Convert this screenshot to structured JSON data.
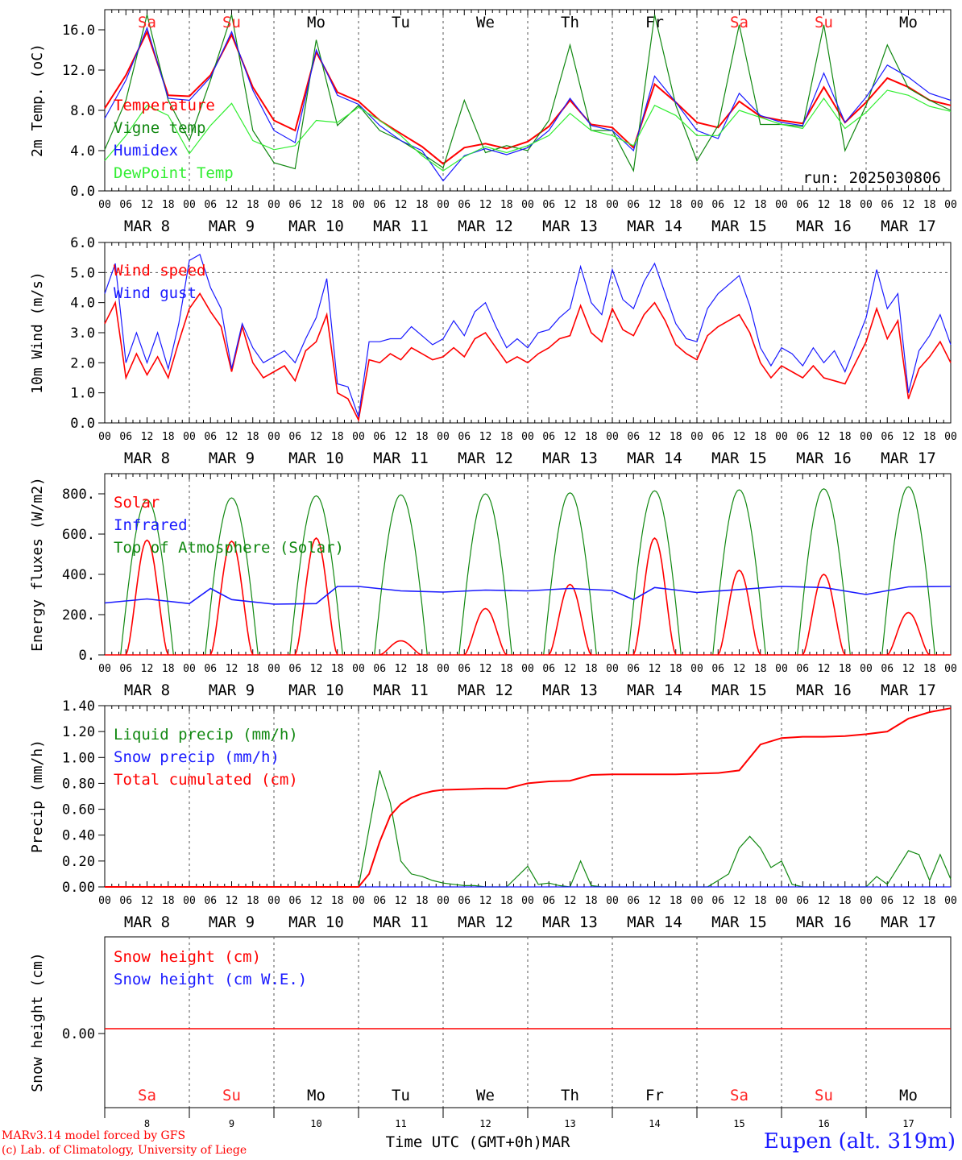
{
  "footer": {
    "model": "MARv3.14 model forced by GFS",
    "copyright": "(c) Lab. of Climatology, University of Liege",
    "time_axis": "Time UTC (GMT+0h)MAR",
    "station": "Eupen (alt. 319m)"
  },
  "days": [
    "Sa",
    "Su",
    "Mo",
    "Tu",
    "We",
    "Th",
    "Fr",
    "Sa",
    "Su",
    "Mo"
  ],
  "weekend_days": [
    "Sa",
    "Su"
  ],
  "date_labels": [
    "MAR  8",
    "MAR  9",
    "MAR 10",
    "MAR 11",
    "MAR 12",
    "MAR 13",
    "MAR 14",
    "MAR 15",
    "MAR 16",
    "MAR 17"
  ],
  "bottom_dates": [
    "8",
    "9",
    "10",
    "11",
    "12",
    "13",
    "14",
    "15",
    "16",
    "17"
  ],
  "hour_ticks": [
    "00",
    "06",
    "12",
    "18"
  ],
  "colors": {
    "red": "#ff0000",
    "green": "#118811",
    "blue": "#1a1aff",
    "light_green": "#33ee33",
    "weekend": "#ff2222",
    "weekday": "#000000"
  },
  "chart_data": [
    {
      "type": "line",
      "ylabel": "2m Temp. (oC)",
      "ylim": [
        0,
        18
      ],
      "yticks": [
        "0.0",
        "4.0",
        "8.0",
        "12.0",
        "16.0"
      ],
      "annotation": "run: 2025030806",
      "legend_position": "top-left",
      "x_unit": "hours since Mar 8 00 UTC",
      "series": [
        {
          "name": "Temperature",
          "color": "red",
          "x": [
            0,
            6,
            12,
            18,
            24,
            30,
            36,
            42,
            48,
            54,
            60,
            66,
            72,
            78,
            84,
            90,
            96,
            102,
            108,
            114,
            120,
            126,
            132,
            138,
            144,
            150,
            156,
            162,
            168,
            174,
            180,
            186,
            192,
            198,
            204,
            210,
            216,
            222,
            228,
            234,
            240
          ],
          "y": [
            8.2,
            11.5,
            15.8,
            9.5,
            9.4,
            11.5,
            15.5,
            10.3,
            7.0,
            6.0,
            13.8,
            9.8,
            8.9,
            7.0,
            5.7,
            4.4,
            2.7,
            4.3,
            4.7,
            4.2,
            4.9,
            6.4,
            9.0,
            6.6,
            6.3,
            4.3,
            10.6,
            8.8,
            6.8,
            6.3,
            8.9,
            7.4,
            7.0,
            6.7,
            10.3,
            6.8,
            8.8,
            11.2,
            10.3,
            9.0,
            8.5
          ]
        },
        {
          "name": "Vigne temp",
          "color": "green",
          "x": [
            0,
            6,
            12,
            18,
            24,
            30,
            36,
            42,
            48,
            54,
            60,
            66,
            72,
            78,
            84,
            90,
            96,
            102,
            108,
            114,
            120,
            126,
            132,
            138,
            144,
            150,
            156,
            162,
            168,
            174,
            180,
            186,
            192,
            198,
            204,
            210,
            216,
            222,
            228,
            234,
            240
          ],
          "y": [
            4.1,
            9.0,
            17.5,
            9.0,
            5.0,
            11.0,
            17.5,
            6.0,
            2.8,
            2.2,
            15.0,
            6.5,
            8.5,
            6.0,
            5.0,
            3.7,
            2.3,
            9.0,
            3.8,
            4.5,
            4.0,
            7.0,
            14.5,
            6.0,
            6.0,
            2.0,
            17.5,
            8.5,
            3.0,
            6.5,
            16.5,
            6.6,
            6.6,
            6.4,
            16.5,
            4.0,
            8.5,
            14.5,
            10.2,
            9.0,
            8.0
          ]
        },
        {
          "name": "Humidex",
          "color": "blue",
          "x": [
            0,
            6,
            12,
            18,
            24,
            30,
            36,
            42,
            48,
            54,
            60,
            66,
            72,
            78,
            84,
            90,
            96,
            102,
            108,
            114,
            120,
            126,
            132,
            138,
            144,
            150,
            156,
            162,
            168,
            174,
            180,
            186,
            192,
            198,
            204,
            210,
            216,
            222,
            228,
            234,
            240
          ],
          "y": [
            7.2,
            11.0,
            16.2,
            9.2,
            9.0,
            11.3,
            15.8,
            10.0,
            6.0,
            4.8,
            14.0,
            9.5,
            8.6,
            6.5,
            5.0,
            4.0,
            1.0,
            3.5,
            4.2,
            3.6,
            4.3,
            6.0,
            9.2,
            6.5,
            6.0,
            4.0,
            11.4,
            8.8,
            6.0,
            5.2,
            9.7,
            7.5,
            6.8,
            6.5,
            11.7,
            6.8,
            9.3,
            12.5,
            11.3,
            9.7,
            9.0
          ]
        },
        {
          "name": "DewPoint Temp",
          "color": "light_green",
          "x": [
            0,
            6,
            12,
            18,
            24,
            30,
            36,
            42,
            48,
            54,
            60,
            66,
            72,
            78,
            84,
            90,
            96,
            102,
            108,
            114,
            120,
            126,
            132,
            138,
            144,
            150,
            156,
            162,
            168,
            174,
            180,
            186,
            192,
            198,
            204,
            210,
            216,
            222,
            228,
            234,
            240
          ],
          "y": [
            3.0,
            5.5,
            8.5,
            7.5,
            3.7,
            6.5,
            8.7,
            5.0,
            4.1,
            4.5,
            7.0,
            6.8,
            8.3,
            7.0,
            5.5,
            3.5,
            2.0,
            3.4,
            4.4,
            3.8,
            4.5,
            5.5,
            7.7,
            6.0,
            5.5,
            4.5,
            8.5,
            7.5,
            5.5,
            5.5,
            8.0,
            7.3,
            6.6,
            6.2,
            9.2,
            6.2,
            7.8,
            10.0,
            9.5,
            8.4,
            7.9
          ]
        }
      ]
    },
    {
      "type": "line",
      "ylabel": "10m Wind (m/s)",
      "ylim": [
        0,
        6
      ],
      "yticks": [
        "0.0",
        "1.0",
        "2.0",
        "3.0",
        "4.0",
        "5.0",
        "6.0"
      ],
      "reference_line": 5.0,
      "legend_position": "top-left",
      "series": [
        {
          "name": "Wind speed",
          "color": "red",
          "x": [
            0,
            3,
            6,
            9,
            12,
            15,
            18,
            21,
            24,
            27,
            30,
            33,
            36,
            39,
            42,
            45,
            48,
            51,
            54,
            57,
            60,
            63,
            66,
            69,
            72,
            75,
            78,
            81,
            84,
            87,
            90,
            93,
            96,
            99,
            102,
            105,
            108,
            111,
            114,
            117,
            120,
            123,
            126,
            129,
            132,
            135,
            138,
            141,
            144,
            147,
            150,
            153,
            156,
            159,
            162,
            165,
            168,
            171,
            174,
            177,
            180,
            183,
            186,
            189,
            192,
            195,
            198,
            201,
            204,
            207,
            210,
            213,
            216,
            219,
            222,
            225,
            228,
            231,
            234,
            237,
            240
          ],
          "y": [
            3.3,
            4.0,
            1.5,
            2.3,
            1.6,
            2.2,
            1.5,
            2.7,
            3.8,
            4.3,
            3.7,
            3.2,
            1.7,
            3.2,
            2.0,
            1.5,
            1.7,
            1.9,
            1.4,
            2.4,
            2.7,
            3.6,
            1.0,
            0.8,
            0.1,
            2.1,
            2.0,
            2.3,
            2.1,
            2.5,
            2.3,
            2.1,
            2.2,
            2.5,
            2.2,
            2.8,
            3.0,
            2.5,
            2.0,
            2.2,
            2.0,
            2.3,
            2.5,
            2.8,
            2.9,
            3.9,
            3.0,
            2.7,
            3.8,
            3.1,
            2.9,
            3.6,
            4.0,
            3.4,
            2.6,
            2.3,
            2.1,
            2.9,
            3.2,
            3.4,
            3.6,
            3.0,
            2.0,
            1.5,
            1.9,
            1.7,
            1.5,
            1.9,
            1.5,
            1.4,
            1.3,
            2.0,
            2.7,
            3.8,
            2.8,
            3.4,
            0.8,
            1.8,
            2.2,
            2.7,
            2.0
          ]
        },
        {
          "name": "Wind gust",
          "color": "blue",
          "x": [
            0,
            3,
            6,
            9,
            12,
            15,
            18,
            21,
            24,
            27,
            30,
            33,
            36,
            39,
            42,
            45,
            48,
            51,
            54,
            57,
            60,
            63,
            66,
            69,
            72,
            75,
            78,
            81,
            84,
            87,
            90,
            93,
            96,
            99,
            102,
            105,
            108,
            111,
            114,
            117,
            120,
            123,
            126,
            129,
            132,
            135,
            138,
            141,
            144,
            147,
            150,
            153,
            156,
            159,
            162,
            165,
            168,
            171,
            174,
            177,
            180,
            183,
            186,
            189,
            192,
            195,
            198,
            201,
            204,
            207,
            210,
            213,
            216,
            219,
            222,
            225,
            228,
            231,
            234,
            237,
            240
          ],
          "y": [
            4.3,
            5.3,
            2.0,
            3.0,
            2.0,
            3.0,
            1.8,
            3.3,
            5.4,
            5.6,
            4.5,
            3.8,
            1.8,
            3.3,
            2.5,
            2.0,
            2.2,
            2.4,
            2.0,
            2.8,
            3.5,
            4.8,
            1.3,
            1.2,
            0.2,
            2.7,
            2.7,
            2.8,
            2.8,
            3.2,
            2.9,
            2.6,
            2.8,
            3.4,
            2.9,
            3.7,
            4.0,
            3.2,
            2.5,
            2.8,
            2.5,
            3.0,
            3.1,
            3.5,
            3.8,
            5.2,
            4.0,
            3.6,
            5.1,
            4.1,
            3.8,
            4.7,
            5.3,
            4.3,
            3.3,
            2.8,
            2.7,
            3.8,
            4.3,
            4.6,
            4.9,
            3.9,
            2.5,
            1.9,
            2.5,
            2.3,
            1.9,
            2.5,
            2.0,
            2.4,
            1.7,
            2.6,
            3.5,
            5.1,
            3.8,
            4.3,
            1.0,
            2.4,
            2.9,
            3.6,
            2.6
          ]
        }
      ]
    },
    {
      "type": "line",
      "ylabel": "Energy fluxes (W/m2)",
      "ylim": [
        0,
        900
      ],
      "yticks": [
        "0.",
        "200.",
        "400.",
        "600.",
        "800."
      ],
      "legend_position": "top-left",
      "series": [
        {
          "name": "Solar",
          "color": "red",
          "day_peaks": [
            570,
            565,
            580,
            70,
            230,
            350,
            580,
            420,
            400,
            210
          ]
        },
        {
          "name": "Infrared",
          "color": "blue",
          "x": [
            0,
            12,
            24,
            30,
            36,
            48,
            60,
            66,
            72,
            84,
            96,
            108,
            120,
            132,
            144,
            150,
            156,
            168,
            180,
            192,
            204,
            216,
            228,
            240
          ],
          "y": [
            258,
            278,
            255,
            330,
            275,
            252,
            255,
            340,
            340,
            318,
            312,
            322,
            318,
            330,
            320,
            275,
            335,
            310,
            325,
            340,
            335,
            300,
            338,
            340
          ]
        },
        {
          "name": "Top of Atmosphere (Solar)",
          "color": "green",
          "day_peaks": [
            770,
            780,
            790,
            795,
            800,
            805,
            815,
            820,
            825,
            835
          ]
        }
      ]
    },
    {
      "type": "line",
      "ylabel": "Precip (mm/h)",
      "ylim": [
        0,
        1.4
      ],
      "yticks": [
        "0.00",
        "0.20",
        "0.40",
        "0.60",
        "0.80",
        "1.00",
        "1.20",
        "1.40"
      ],
      "legend_position": "top-left",
      "series": [
        {
          "name": "Liquid precip (mm/h)",
          "color": "green",
          "x": [
            0,
            72,
            75,
            78,
            81,
            84,
            87,
            90,
            93,
            96,
            99,
            102,
            105,
            108,
            111,
            114,
            120,
            123,
            126,
            129,
            132,
            135,
            138,
            141,
            144,
            150,
            156,
            162,
            168,
            171,
            174,
            177,
            180,
            183,
            186,
            189,
            192,
            195,
            198,
            204,
            210,
            216,
            219,
            222,
            225,
            228,
            231,
            234,
            237,
            240
          ],
          "y": [
            0,
            0,
            0.45,
            0.9,
            0.65,
            0.2,
            0.1,
            0.08,
            0.05,
            0.03,
            0.02,
            0.01,
            0.01,
            0,
            0,
            0,
            0.16,
            0.02,
            0.03,
            0.01,
            0,
            0.2,
            0.01,
            0,
            0,
            0,
            0,
            0,
            0,
            0,
            0.05,
            0.1,
            0.3,
            0.39,
            0.3,
            0.15,
            0.2,
            0.02,
            0,
            0,
            0,
            0,
            0.08,
            0.02,
            0.15,
            0.28,
            0.25,
            0.05,
            0.25,
            0.06
          ]
        },
        {
          "name": "Snow precip (mm/h)",
          "color": "blue",
          "x": [
            0,
            240
          ],
          "y": [
            0,
            0
          ]
        },
        {
          "name": "Total cumulated (cm)",
          "color": "red",
          "x": [
            0,
            72,
            75,
            78,
            81,
            84,
            87,
            90,
            93,
            96,
            102,
            108,
            114,
            120,
            126,
            132,
            138,
            144,
            150,
            156,
            162,
            168,
            174,
            180,
            186,
            192,
            198,
            204,
            210,
            216,
            222,
            228,
            234,
            240
          ],
          "y": [
            0,
            0,
            0.1,
            0.35,
            0.55,
            0.64,
            0.69,
            0.72,
            0.74,
            0.75,
            0.755,
            0.76,
            0.76,
            0.8,
            0.815,
            0.82,
            0.865,
            0.87,
            0.87,
            0.87,
            0.87,
            0.875,
            0.88,
            0.9,
            1.1,
            1.15,
            1.16,
            1.16,
            1.165,
            1.18,
            1.2,
            1.3,
            1.35,
            1.38
          ]
        }
      ]
    },
    {
      "type": "line",
      "ylabel": "Snow height (cm)",
      "yticks": [
        "0.00"
      ],
      "legend_position": "top-left",
      "series": [
        {
          "name": "Snow height (cm)",
          "color": "red",
          "x": [
            0,
            240
          ],
          "y": [
            0,
            0
          ]
        },
        {
          "name": "Snow height (cm W.E.)",
          "color": "blue",
          "x": [
            0,
            240
          ],
          "y": [
            0,
            0
          ]
        }
      ]
    }
  ]
}
